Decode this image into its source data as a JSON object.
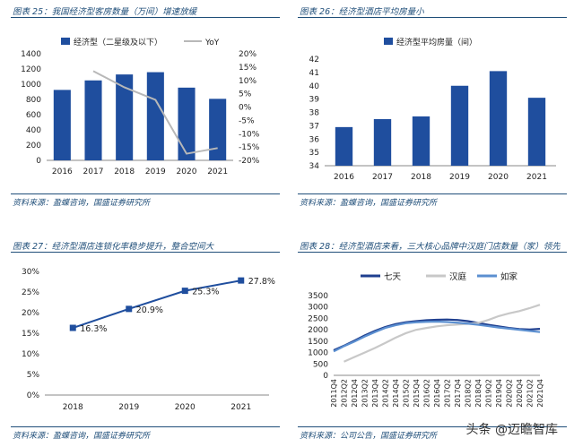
{
  "panels": [
    {
      "title": "图表 25：我国经济型客房数量（万间）增速放缓",
      "source": "资料来源：盈蝶咨询，国盛证券研究所",
      "chart_data": {
        "type": "bar",
        "categories": [
          "2016",
          "2017",
          "2018",
          "2019",
          "2020",
          "2021"
        ],
        "series": [
          {
            "name": "经济型（二星级及以下）",
            "type": "bar",
            "axis": "left",
            "color": "#1f4e9e",
            "values": [
              925,
              1050,
              1128,
              1158,
              955,
              808
            ]
          },
          {
            "name": "YoY",
            "type": "line",
            "axis": "right",
            "color": "#b8b8b8",
            "values": [
              null,
              13.5,
              7.4,
              2.7,
              -17.5,
              -15.4
            ]
          }
        ],
        "ylim": [
          0,
          1400
        ],
        "yticks": [
          0,
          200,
          400,
          600,
          800,
          1000,
          1200,
          1400
        ],
        "y2lim": [
          -20,
          20
        ],
        "y2ticks": [
          "-20%",
          "-15%",
          "-10%",
          "-5%",
          "0%",
          "5%",
          "10%",
          "15%",
          "20%"
        ],
        "legend": "top"
      }
    },
    {
      "title": "图表 26：经济型酒店平均房量小",
      "source": "资料来源：盈蝶咨询，国盛证券研究所",
      "chart_data": {
        "type": "bar",
        "categories": [
          "2016",
          "2017",
          "2018",
          "2019",
          "2020",
          "2021"
        ],
        "series": [
          {
            "name": "经济型平均房量（间）",
            "color": "#1f4e9e",
            "values": [
              36.9,
              37.5,
              37.7,
              40.0,
              41.1,
              39.1
            ]
          }
        ],
        "ylim": [
          34,
          42
        ],
        "yticks": [
          34,
          35,
          36,
          37,
          38,
          39,
          40,
          41,
          42
        ],
        "legend": "top"
      }
    },
    {
      "title": "图表 27：经济型酒店连锁化率稳步提升，整合空间大",
      "source": "资料来源：盈蝶咨询，国盛证券研究所",
      "chart_data": {
        "type": "line",
        "categories": [
          "2018",
          "2019",
          "2020",
          "2021"
        ],
        "series": [
          {
            "color": "#1f4e9e",
            "values": [
              16.3,
              20.9,
              25.3,
              27.8
            ],
            "labels": [
              "16.3%",
              "20.9%",
              "25.3%",
              "27.8%"
            ]
          }
        ],
        "ylim": [
          0,
          30
        ],
        "yticks": [
          "0%",
          "5%",
          "10%",
          "15%",
          "20%",
          "25%",
          "30%"
        ]
      }
    },
    {
      "title": "图表 28：经济型酒店来看，三大核心品牌中汉庭门店数量（家）领先",
      "source": "资料来源：公司公告，国盛证券研究所",
      "chart_data": {
        "type": "line",
        "x": [
          "2011Q4",
          "2012Q2",
          "2012Q4",
          "2013Q2",
          "2013Q4",
          "2014Q2",
          "2014Q4",
          "2015Q2",
          "2015Q4",
          "2016Q2",
          "2016Q4",
          "2017Q2",
          "2017Q4",
          "2018Q2",
          "2018Q4",
          "2019Q2",
          "2019Q4",
          "2020Q2",
          "2020Q4",
          "2021Q2",
          "2021Q4"
        ],
        "series": [
          {
            "name": "七天",
            "color": "#1f3f8f",
            "values": [
              1100,
              1300,
              1520,
              1750,
              1950,
              2120,
              2250,
              2330,
              2380,
              2420,
              2440,
              2450,
              2430,
              2380,
              2300,
              2220,
              2150,
              2080,
              2030,
              2010,
              2040
            ]
          },
          {
            "name": "汉庭",
            "color": "#c8c8c8",
            "values": [
              null,
              600,
              800,
              1000,
              1200,
              1420,
              1650,
              1850,
              2000,
              2080,
              2150,
              2200,
              2230,
              2260,
              2300,
              2430,
              2600,
              2720,
              2820,
              2950,
              3100
            ]
          },
          {
            "name": "如家",
            "color": "#5b8fd0",
            "values": [
              1050,
              1280,
              1480,
              1700,
              1900,
              2080,
              2200,
              2290,
              2330,
              2350,
              2360,
              2340,
              2310,
              2270,
              2220,
              2160,
              2100,
              2050,
              2000,
              1950,
              1900
            ]
          }
        ],
        "ylim": [
          0,
          3500
        ],
        "yticks": [
          0,
          500,
          1000,
          1500,
          2000,
          2500,
          3000,
          3500
        ],
        "legend": "top"
      }
    }
  ],
  "watermark": "头条 @迈瞻智库"
}
